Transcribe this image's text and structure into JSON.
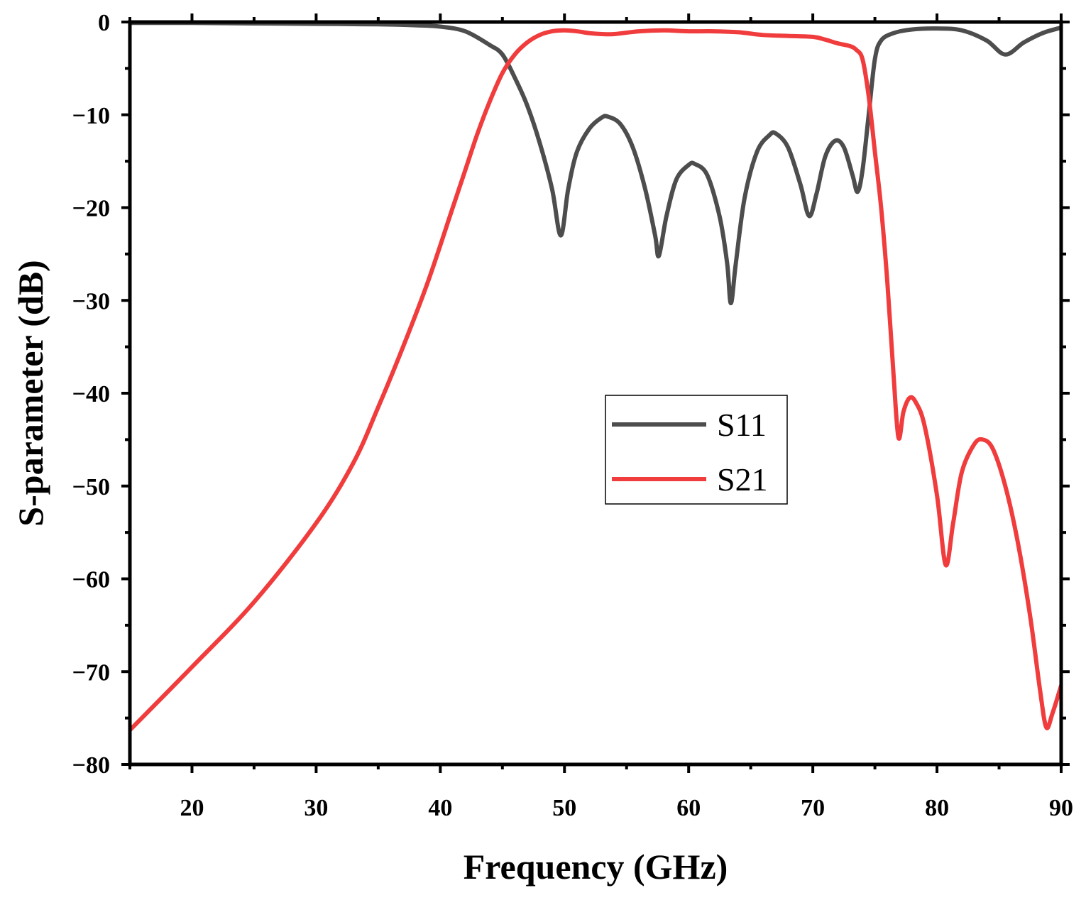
{
  "chart_data": {
    "type": "line",
    "title": "",
    "xlabel": "Frequency (GHz)",
    "ylabel": "S-parameter (dB)",
    "xlim": [
      15,
      90
    ],
    "ylim": [
      -80,
      0
    ],
    "x_ticks": [
      20,
      30,
      40,
      50,
      60,
      70,
      80,
      90
    ],
    "y_ticks": [
      0,
      -10,
      -20,
      -30,
      -40,
      -50,
      -60,
      -70,
      -80
    ],
    "x_tick_labels": [
      "20",
      "30",
      "40",
      "50",
      "60",
      "70",
      "80",
      "90"
    ],
    "y_tick_labels": [
      "0",
      "−10",
      "−20",
      "−30",
      "−40",
      "−50",
      "−60",
      "−70",
      "−80"
    ],
    "grid": false,
    "legend": {
      "position": "center-right",
      "entries": [
        "S11",
        "S21"
      ]
    },
    "series": [
      {
        "name": "S11",
        "color": "#4d4d4d",
        "points": [
          [
            15,
            -0.1
          ],
          [
            20,
            -0.1
          ],
          [
            25,
            -0.15
          ],
          [
            30,
            -0.2
          ],
          [
            35,
            -0.25
          ],
          [
            38,
            -0.35
          ],
          [
            40,
            -0.5
          ],
          [
            42,
            -1.0
          ],
          [
            44,
            -2.5
          ],
          [
            45,
            -3.5
          ],
          [
            46,
            -6
          ],
          [
            47,
            -9
          ],
          [
            48,
            -13
          ],
          [
            49,
            -18
          ],
          [
            49.7,
            -23
          ],
          [
            50.3,
            -18
          ],
          [
            51,
            -14
          ],
          [
            52,
            -11.5
          ],
          [
            53,
            -10.3
          ],
          [
            53.5,
            -10.2
          ],
          [
            54.5,
            -11
          ],
          [
            55.5,
            -13.5
          ],
          [
            56.5,
            -18
          ],
          [
            57.3,
            -23
          ],
          [
            57.6,
            -25.2
          ],
          [
            58.2,
            -21
          ],
          [
            59,
            -17
          ],
          [
            60,
            -15.4
          ],
          [
            60.5,
            -15.3
          ],
          [
            61.5,
            -16.5
          ],
          [
            62.5,
            -21
          ],
          [
            63.1,
            -26
          ],
          [
            63.4,
            -30.3
          ],
          [
            63.8,
            -26
          ],
          [
            64.5,
            -19
          ],
          [
            65.5,
            -14
          ],
          [
            66.5,
            -12.2
          ],
          [
            67,
            -12
          ],
          [
            68,
            -13.5
          ],
          [
            69,
            -17.5
          ],
          [
            69.7,
            -20.9
          ],
          [
            70.3,
            -18.5
          ],
          [
            71,
            -14.5
          ],
          [
            71.8,
            -12.8
          ],
          [
            72.5,
            -13.5
          ],
          [
            73.2,
            -16.5
          ],
          [
            73.6,
            -18.3
          ],
          [
            74,
            -16
          ],
          [
            74.5,
            -10
          ],
          [
            75,
            -4
          ],
          [
            75.5,
            -2
          ],
          [
            76.5,
            -1.2
          ],
          [
            78,
            -0.8
          ],
          [
            80,
            -0.7
          ],
          [
            82,
            -0.9
          ],
          [
            84,
            -2
          ],
          [
            85.5,
            -3.5
          ],
          [
            87,
            -2.2
          ],
          [
            88.5,
            -1.2
          ],
          [
            90,
            -0.6
          ]
        ]
      },
      {
        "name": "S21",
        "color": "#f03c3c",
        "points": [
          [
            15,
            -76.3
          ],
          [
            20,
            -69.5
          ],
          [
            25,
            -62.5
          ],
          [
            30,
            -54
          ],
          [
            33,
            -47.5
          ],
          [
            35,
            -41.5
          ],
          [
            37,
            -35
          ],
          [
            39,
            -28
          ],
          [
            41,
            -20
          ],
          [
            42,
            -16
          ],
          [
            43,
            -12
          ],
          [
            44,
            -8.5
          ],
          [
            45,
            -5.5
          ],
          [
            46,
            -3.5
          ],
          [
            47,
            -2.2
          ],
          [
            48,
            -1.4
          ],
          [
            49,
            -1.0
          ],
          [
            50,
            -0.9
          ],
          [
            51,
            -1.0
          ],
          [
            52,
            -1.2
          ],
          [
            53,
            -1.3
          ],
          [
            54,
            -1.3
          ],
          [
            56,
            -1.0
          ],
          [
            58,
            -0.9
          ],
          [
            60,
            -1.0
          ],
          [
            62,
            -1.0
          ],
          [
            64,
            -1.1
          ],
          [
            66,
            -1.4
          ],
          [
            68,
            -1.5
          ],
          [
            70,
            -1.6
          ],
          [
            71,
            -1.9
          ],
          [
            72,
            -2.3
          ],
          [
            73,
            -2.6
          ],
          [
            73.5,
            -3
          ],
          [
            74,
            -4
          ],
          [
            74.5,
            -8
          ],
          [
            75,
            -14
          ],
          [
            75.5,
            -20
          ],
          [
            76,
            -28
          ],
          [
            76.5,
            -38
          ],
          [
            76.9,
            -44.8
          ],
          [
            77.3,
            -42
          ],
          [
            77.8,
            -40.5
          ],
          [
            78.3,
            -41
          ],
          [
            79,
            -43.5
          ],
          [
            80,
            -51
          ],
          [
            80.7,
            -58.5
          ],
          [
            81.3,
            -54
          ],
          [
            82,
            -48.5
          ],
          [
            83,
            -45.5
          ],
          [
            83.7,
            -45
          ],
          [
            84.5,
            -46
          ],
          [
            85.5,
            -50
          ],
          [
            86.5,
            -56
          ],
          [
            87.5,
            -64
          ],
          [
            88.3,
            -72
          ],
          [
            88.8,
            -76
          ],
          [
            89.3,
            -74.5
          ],
          [
            90,
            -71.5
          ]
        ]
      }
    ]
  }
}
